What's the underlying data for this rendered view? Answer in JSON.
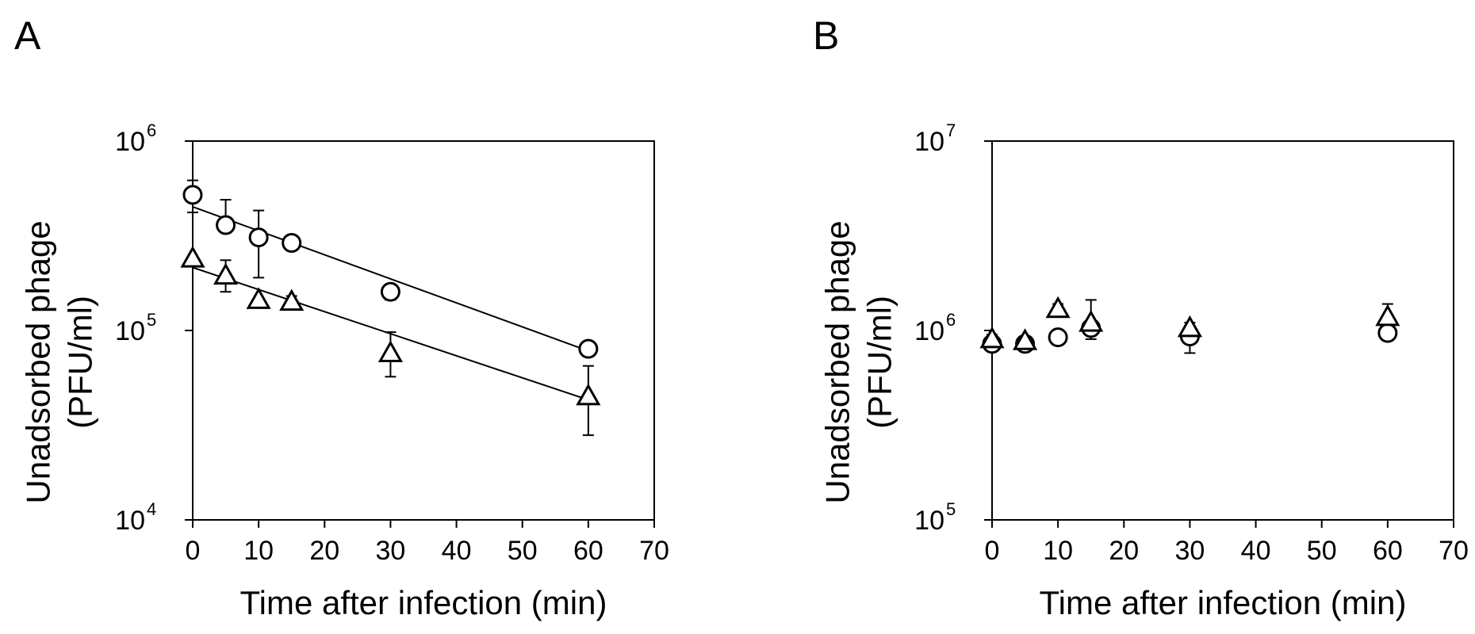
{
  "chart_data": [
    {
      "panel_label": "A",
      "type": "scatter",
      "xlabel": "Time after infection (min)",
      "ylabel_line1": "Unadsorbed phage",
      "ylabel_line2": "(PFU/ml)",
      "xlim": [
        0,
        70
      ],
      "xticks": [
        "0",
        "10",
        "20",
        "30",
        "40",
        "50",
        "60",
        "70"
      ],
      "y_scale": "log",
      "ylim": [
        10000,
        1000000
      ],
      "yticks": [
        {
          "base": "10",
          "exp": "4"
        },
        {
          "base": "10",
          "exp": "5"
        },
        {
          "base": "10",
          "exp": "6"
        }
      ],
      "series": [
        {
          "marker": "circle",
          "points": [
            {
              "x": 0,
              "y": 520000,
              "err_hi": 620000,
              "err_lo": 420000
            },
            {
              "x": 5,
              "y": 360000,
              "err_hi": 490000,
              "err_lo": 360000
            },
            {
              "x": 10,
              "y": 310000,
              "err_hi": 430000,
              "err_lo": 190000
            },
            {
              "x": 15,
              "y": 290000,
              "err_hi": 300000,
              "err_lo": 290000
            },
            {
              "x": 30,
              "y": 160000,
              "err_hi": 165000,
              "err_lo": 145000
            },
            {
              "x": 60,
              "y": 80000,
              "err_hi": 80000,
              "err_lo": 80000
            }
          ],
          "fit": [
            [
              0,
              450000
            ],
            [
              60,
              78000
            ]
          ]
        },
        {
          "marker": "triangle",
          "points": [
            {
              "x": 0,
              "y": 240000,
              "err_hi": 240000,
              "err_lo": 240000
            },
            {
              "x": 5,
              "y": 195000,
              "err_hi": 235000,
              "err_lo": 160000
            },
            {
              "x": 10,
              "y": 145000,
              "err_hi": 145000,
              "err_lo": 145000
            },
            {
              "x": 15,
              "y": 142000,
              "err_hi": 152000,
              "err_lo": 142000
            },
            {
              "x": 30,
              "y": 76000,
              "err_hi": 98000,
              "err_lo": 57000
            },
            {
              "x": 60,
              "y": 45000,
              "err_hi": 65000,
              "err_lo": 28000
            }
          ],
          "fit": [
            [
              0,
              215000
            ],
            [
              60,
              43000
            ]
          ]
        }
      ]
    },
    {
      "panel_label": "B",
      "type": "scatter",
      "xlabel": "Time after infection (min)",
      "ylabel_line1": "Unadsorbed phage",
      "ylabel_line2": "(PFU/ml)",
      "xlim": [
        0,
        70
      ],
      "xticks": [
        "0",
        "10",
        "20",
        "30",
        "40",
        "50",
        "60",
        "70"
      ],
      "y_scale": "log",
      "ylim": [
        100000,
        10000000
      ],
      "yticks": [
        {
          "base": "10",
          "exp": "5"
        },
        {
          "base": "10",
          "exp": "6"
        },
        {
          "base": "10",
          "exp": "7"
        }
      ],
      "series": [
        {
          "marker": "circle",
          "points": [
            {
              "x": 0,
              "y": 850000,
              "err_hi": 850000,
              "err_lo": 850000
            },
            {
              "x": 5,
              "y": 850000,
              "err_hi": 850000,
              "err_lo": 850000
            },
            {
              "x": 10,
              "y": 920000,
              "err_hi": 920000,
              "err_lo": 920000
            },
            {
              "x": 15,
              "y": 1030000,
              "err_hi": 1100000,
              "err_lo": 900000
            },
            {
              "x": 30,
              "y": 930000,
              "err_hi": 1000000,
              "err_lo": 760000
            },
            {
              "x": 60,
              "y": 970000,
              "err_hi": 970000,
              "err_lo": 970000
            }
          ],
          "fit": []
        },
        {
          "marker": "triangle",
          "points": [
            {
              "x": 0,
              "y": 900000,
              "err_hi": 950000,
              "err_lo": 900000
            },
            {
              "x": 5,
              "y": 880000,
              "err_hi": 930000,
              "err_lo": 880000
            },
            {
              "x": 10,
              "y": 1300000,
              "err_hi": 1380000,
              "err_lo": 1300000
            },
            {
              "x": 15,
              "y": 1100000,
              "err_hi": 1450000,
              "err_lo": 1100000
            },
            {
              "x": 30,
              "y": 1030000,
              "err_hi": 1100000,
              "err_lo": 1030000
            },
            {
              "x": 60,
              "y": 1180000,
              "err_hi": 1380000,
              "err_lo": 1180000
            }
          ],
          "fit": []
        }
      ]
    }
  ]
}
